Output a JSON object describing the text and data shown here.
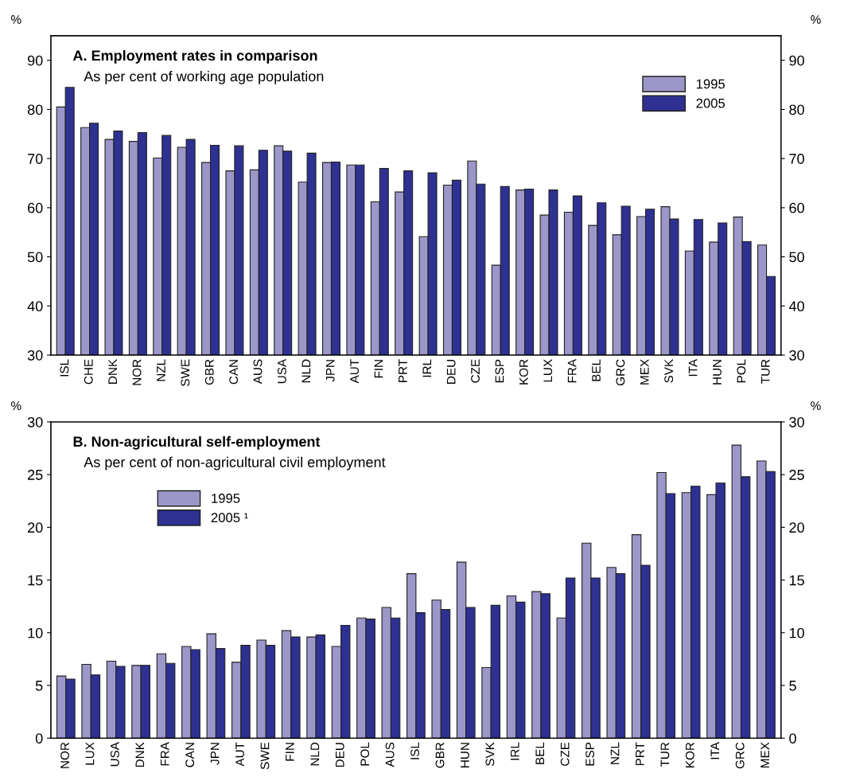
{
  "chart_data": [
    {
      "type": "bar",
      "title": "A. Employment rates in comparison",
      "subtitle": "As per cent of working age population",
      "ylabel": "%",
      "y2label": "%",
      "categories": [
        "ISL",
        "CHE",
        "DNK",
        "NOR",
        "NZL",
        "SWE",
        "GBR",
        "CAN",
        "AUS",
        "USA",
        "NLD",
        "JPN",
        "AUT",
        "FIN",
        "PRT",
        "IRL",
        "DEU",
        "CZE",
        "ESP",
        "KOR",
        "LUX",
        "FRA",
        "BEL",
        "GRC",
        "MEX",
        "SVK",
        "ITA",
        "HUN",
        "POL",
        "TUR"
      ],
      "series": [
        {
          "name": "1995",
          "color": "#9b97c9",
          "values": [
            80.5,
            76.3,
            73.9,
            73.5,
            70.1,
            72.3,
            69.2,
            67.5,
            67.7,
            72.6,
            65.2,
            69.2,
            68.7,
            61.2,
            63.2,
            54.1,
            64.6,
            69.5,
            48.3,
            63.6,
            58.5,
            59.1,
            56.4,
            54.5,
            58.2,
            60.2,
            51.2,
            53.0,
            58.1,
            52.4
          ]
        },
        {
          "name": "2005",
          "color": "#2e3192",
          "values": [
            84.5,
            77.2,
            75.6,
            75.3,
            74.7,
            73.9,
            72.7,
            72.6,
            71.7,
            71.5,
            71.1,
            69.3,
            68.7,
            68.0,
            67.5,
            67.1,
            65.6,
            64.8,
            64.3,
            63.8,
            63.6,
            62.4,
            61.0,
            60.3,
            59.7,
            57.7,
            57.6,
            56.9,
            53.1,
            46.0
          ]
        }
      ],
      "ylim": [
        30,
        95
      ],
      "yticks": [
        30,
        40,
        50,
        60,
        70,
        80,
        90
      ],
      "y2lim": [
        30,
        95
      ],
      "y2ticks": [
        30,
        40,
        50,
        60,
        70,
        80,
        90
      ],
      "grid": false,
      "legend": "top right"
    },
    {
      "type": "bar",
      "title": "B. Non-agricultural self-employment",
      "subtitle": "As per cent of non-agricultural civil employment",
      "ylabel": "%",
      "y2label": "%",
      "categories": [
        "NOR",
        "LUX",
        "USA",
        "DNK",
        "FRA",
        "CAN",
        "JPN",
        "AUT",
        "SWE",
        "FIN",
        "NLD",
        "DEU",
        "POL",
        "AUS",
        "ISL",
        "GBR",
        "HUN",
        "SVK",
        "IRL",
        "BEL",
        "CZE",
        "ESP",
        "NZL",
        "PRT",
        "TUR",
        "KOR",
        "ITA",
        "GRC",
        "MEX"
      ],
      "series": [
        {
          "name": "1995",
          "color": "#9b97c9",
          "values": [
            5.9,
            7.0,
            7.3,
            6.9,
            8.0,
            8.7,
            9.9,
            7.2,
            9.3,
            10.2,
            9.6,
            8.7,
            11.4,
            12.4,
            15.6,
            13.1,
            16.7,
            6.7,
            13.5,
            13.9,
            11.4,
            18.5,
            16.2,
            19.3,
            25.2,
            23.3,
            23.1,
            27.8,
            26.3
          ]
        },
        {
          "name": "2005 ¹",
          "color": "#2e3192",
          "values": [
            5.6,
            6.0,
            6.8,
            6.9,
            7.1,
            8.4,
            8.5,
            8.8,
            8.8,
            9.6,
            9.8,
            10.7,
            11.3,
            11.4,
            11.9,
            12.2,
            12.4,
            12.6,
            12.9,
            13.7,
            15.2,
            15.2,
            15.6,
            16.4,
            23.2,
            23.9,
            24.2,
            24.8,
            25.3
          ]
        }
      ],
      "ylim": [
        0,
        30
      ],
      "yticks": [
        0,
        5,
        10,
        15,
        20,
        25,
        30
      ],
      "y2lim": [
        0,
        30
      ],
      "y2ticks": [
        0,
        5,
        10,
        15,
        20,
        25,
        30
      ],
      "grid": false,
      "legend": "top left"
    }
  ]
}
